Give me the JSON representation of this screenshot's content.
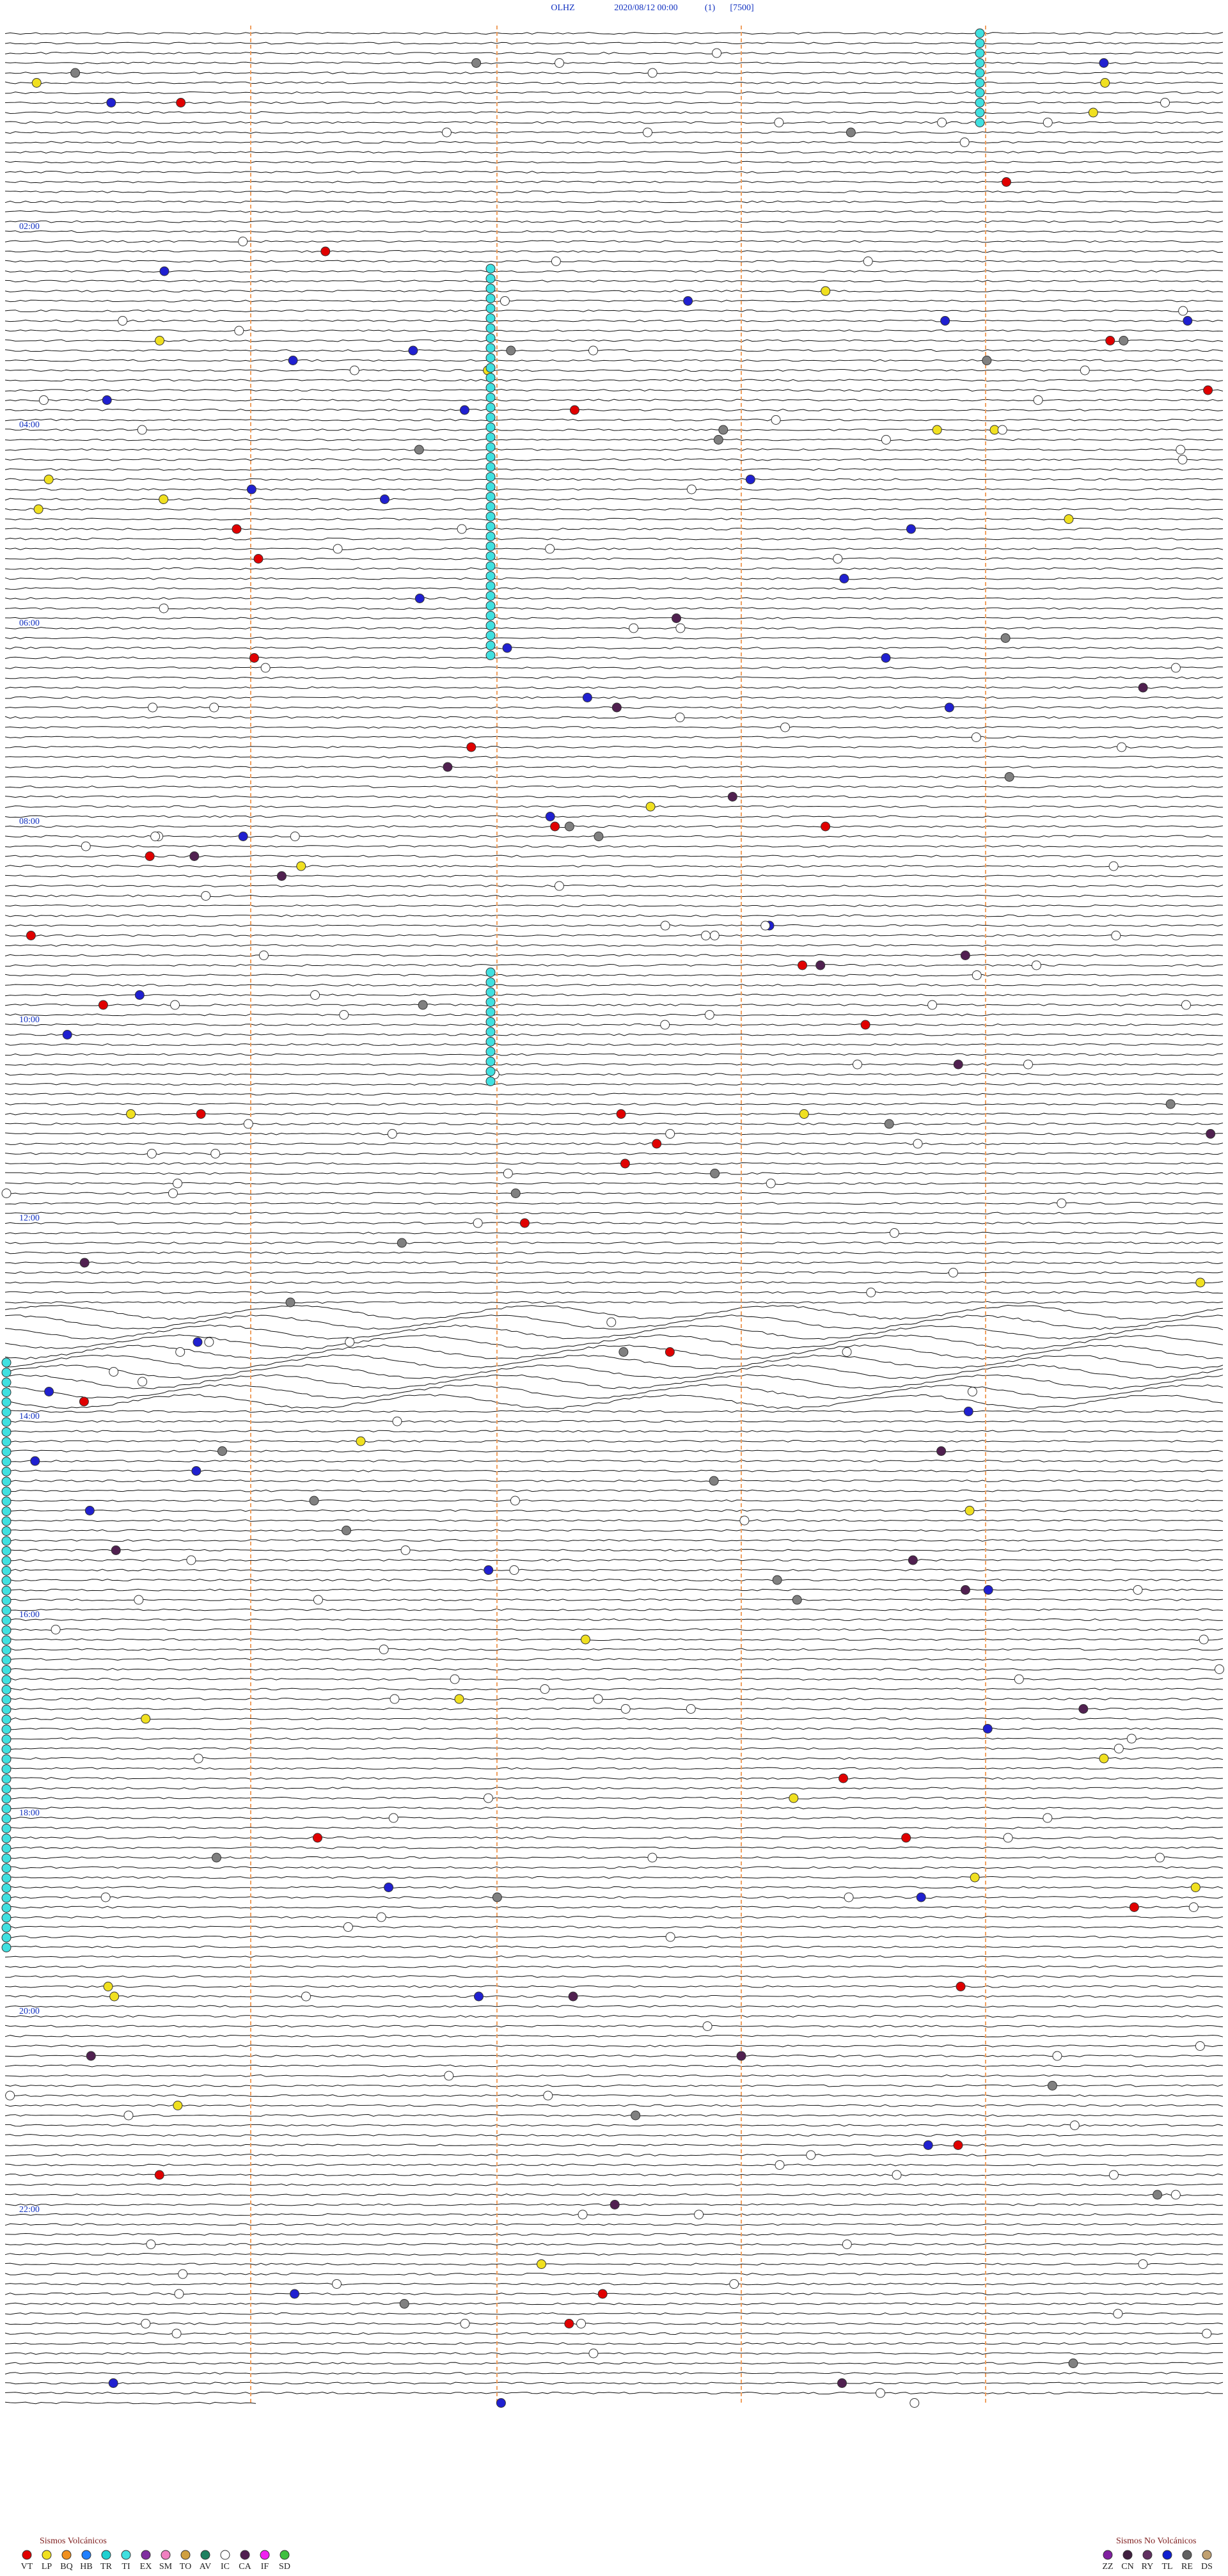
{
  "header": {
    "station": "OLHZ",
    "datetime": "2020/08/12 00:00",
    "filter": "(1)",
    "scale": "[7500]"
  },
  "hour_labels": [
    "02:00",
    "04:00",
    "06:00",
    "08:00",
    "10:00",
    "12:00",
    "14:00",
    "16:00",
    "18:00",
    "20:00",
    "22:00"
  ],
  "legend": {
    "volcanic": {
      "title": "Sismos Volcánicos",
      "items": [
        {
          "code": "VT",
          "color": "#e00000"
        },
        {
          "code": "LP",
          "color": "#f0e020"
        },
        {
          "code": "BQ",
          "color": "#f09020"
        },
        {
          "code": "HB",
          "color": "#2080ff"
        },
        {
          "code": "TR",
          "color": "#20d0d0"
        },
        {
          "code": "TI",
          "color": "#40e0e0"
        },
        {
          "code": "EX",
          "color": "#8030a0"
        },
        {
          "code": "SM",
          "color": "#f080c0"
        },
        {
          "code": "TO",
          "color": "#d0a040"
        },
        {
          "code": "AV",
          "color": "#208060"
        },
        {
          "code": "IC",
          "color": "#ffffff"
        },
        {
          "code": "CA",
          "color": "#502050"
        },
        {
          "code": "IF",
          "color": "#f020f0"
        },
        {
          "code": "SD",
          "color": "#40c040"
        }
      ]
    },
    "non_volcanic": {
      "title": "Sismos No Volcánicos",
      "items": [
        {
          "code": "ZZ",
          "color": "#8020a0"
        },
        {
          "code": "CN",
          "color": "#402040"
        },
        {
          "code": "RY",
          "color": "#603060"
        },
        {
          "code": "TL",
          "color": "#1020d0"
        },
        {
          "code": "RE",
          "color": "#606060"
        },
        {
          "code": "DS",
          "color": "#c0a070"
        }
      ]
    }
  }
}
